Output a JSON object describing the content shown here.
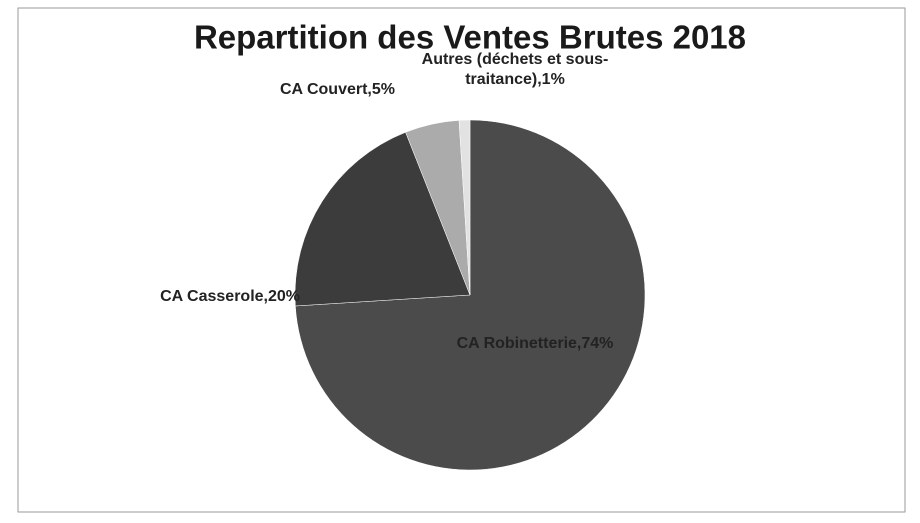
{
  "chart_data": {
    "type": "pie",
    "title": "Repartition des Ventes Brutes 2018",
    "categories": [
      "CA Robinetterie",
      "CA Casserole",
      "CA Couvert",
      "Autres (déchets et sous-traitance)"
    ],
    "values": [
      74,
      20,
      5,
      1
    ],
    "value_labels": [
      ",74%",
      ",20%",
      ",5%",
      ",1%"
    ],
    "colors": [
      "#4b4b4b",
      "#3c3c3c",
      "#ababab",
      "#e2e2e2"
    ]
  }
}
